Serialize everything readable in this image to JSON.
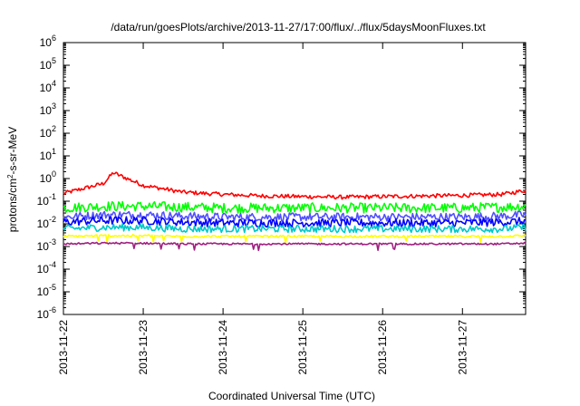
{
  "chart_data": {
    "type": "line",
    "title": "/data/run/goesPlots/archive/2013-11-27/17:00/flux/../flux/5daysMoonFluxes.txt",
    "xlabel": "Coordinated Universal Time (UTC)",
    "ylabel": {
      "prefix": "protons/cm",
      "sup": "2",
      "suffix": "-s-sr-MeV"
    },
    "yscale": "log",
    "ylim": [
      1e-06,
      1000000.0
    ],
    "xlim": [
      "2013-11-22",
      "2013-11-27 19:00"
    ],
    "x_ticks": [
      "2013-11-22",
      "2013-11-23",
      "2013-11-24",
      "2013-11-25",
      "2013-11-26",
      "2013-11-27"
    ],
    "y_ticks": [
      {
        "base": "10",
        "exp": "6"
      },
      {
        "base": "10",
        "exp": "5"
      },
      {
        "base": "10",
        "exp": "4"
      },
      {
        "base": "10",
        "exp": "3"
      },
      {
        "base": "10",
        "exp": "2"
      },
      {
        "base": "10",
        "exp": "1"
      },
      {
        "base": "10",
        "exp": "0"
      },
      {
        "base": "10",
        "exp": "-1"
      },
      {
        "base": "10",
        "exp": "-2"
      },
      {
        "base": "10",
        "exp": "-3"
      },
      {
        "base": "10",
        "exp": "-4"
      },
      {
        "base": "10",
        "exp": "-5"
      },
      {
        "base": "10",
        "exp": "-6"
      }
    ],
    "grid": false,
    "legend": "none",
    "x": [
      "2013-11-22",
      "2013-11-22 12:00",
      "2013-11-22 15:00",
      "2013-11-23",
      "2013-11-23 12:00",
      "2013-11-24",
      "2013-11-24 12:00",
      "2013-11-25",
      "2013-11-25 12:00",
      "2013-11-26",
      "2013-11-26 12:00",
      "2013-11-27",
      "2013-11-27 12:00",
      "2013-11-27 19:00"
    ],
    "series": [
      {
        "color": "#ff0000",
        "values": [
          0.22,
          0.6,
          1.8,
          0.5,
          0.25,
          0.2,
          0.17,
          0.16,
          0.15,
          0.16,
          0.17,
          0.18,
          0.2,
          0.3
        ]
      },
      {
        "color": "#00ff00",
        "values": [
          0.05,
          0.06,
          0.06,
          0.06,
          0.055,
          0.05,
          0.05,
          0.05,
          0.05,
          0.05,
          0.05,
          0.05,
          0.055,
          0.06
        ]
      },
      {
        "color": "#5050ff",
        "values": [
          0.02,
          0.025,
          0.025,
          0.025,
          0.022,
          0.02,
          0.02,
          0.02,
          0.02,
          0.02,
          0.02,
          0.02,
          0.022,
          0.025
        ]
      },
      {
        "color": "#0000ff",
        "values": [
          0.012,
          0.014,
          0.014,
          0.014,
          0.012,
          0.011,
          0.011,
          0.011,
          0.011,
          0.011,
          0.011,
          0.011,
          0.012,
          0.013
        ]
      },
      {
        "color": "#00c8c8",
        "values": [
          0.006,
          0.007,
          0.007,
          0.007,
          0.006,
          0.006,
          0.006,
          0.006,
          0.006,
          0.006,
          0.006,
          0.006,
          0.006,
          0.007
        ]
      },
      {
        "color": "#ffff00",
        "values": [
          0.0028,
          0.003,
          0.003,
          0.003,
          0.0028,
          0.0028,
          0.0028,
          0.0028,
          0.0028,
          0.0028,
          0.0028,
          0.0028,
          0.0028,
          0.003
        ]
      },
      {
        "color": "#a02080",
        "values": [
          0.0013,
          0.0014,
          0.0014,
          0.0014,
          0.0013,
          0.0013,
          0.0013,
          0.0013,
          0.0013,
          0.0013,
          0.0013,
          0.0013,
          0.0013,
          0.0014
        ]
      }
    ]
  }
}
